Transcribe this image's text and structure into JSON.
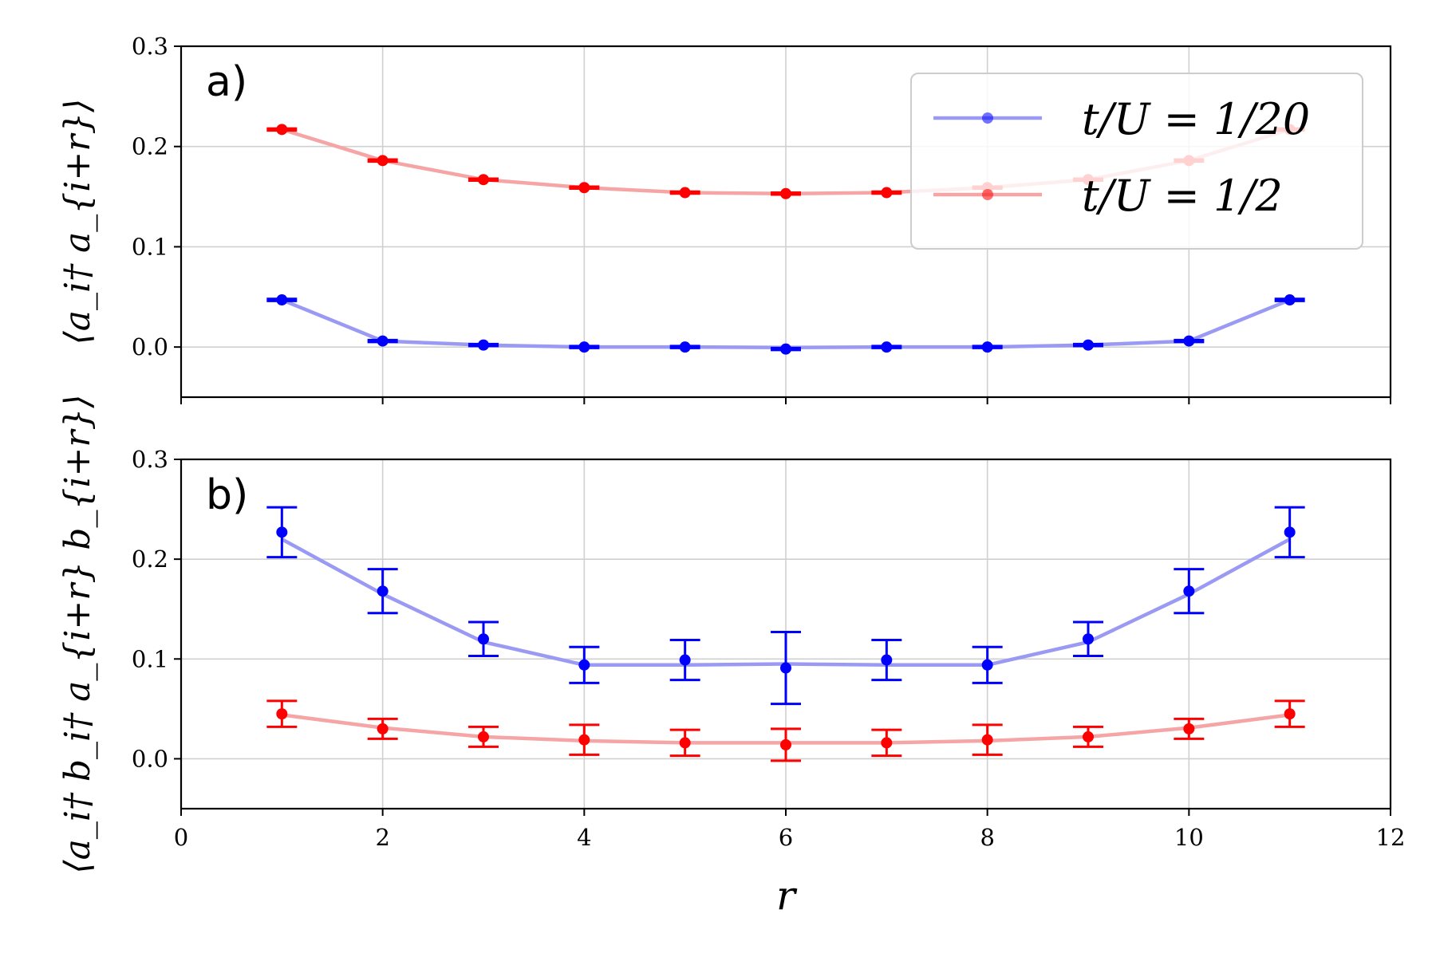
{
  "chart_data": [
    {
      "type": "line",
      "panel_label": "a)",
      "ylabel": "⟨a_i† a_{i+r}⟩",
      "xlim": [
        0,
        12
      ],
      "ylim": [
        -0.05,
        0.3
      ],
      "yticks": [
        "0.0",
        "0.1",
        "0.2",
        "0.3"
      ],
      "grid": true,
      "legend": "top-right",
      "x": [
        1,
        2,
        3,
        4,
        5,
        6,
        7,
        8,
        9,
        10,
        11
      ],
      "series": [
        {
          "name": "t/U = 1/20",
          "color": "#0000ff",
          "line_color": "#9a9af5",
          "values": [
            0.047,
            0.006,
            0.002,
            0.0,
            0.0,
            -0.002,
            0.0,
            0.0,
            0.002,
            0.006,
            0.047
          ],
          "errors": [
            0.001,
            0.001,
            0.001,
            0.001,
            0.001,
            0.001,
            0.001,
            0.001,
            0.001,
            0.001,
            0.001
          ],
          "fit": [
            0.047,
            0.006,
            0.002,
            0.0,
            0.0,
            -0.0005,
            0.0,
            0.0,
            0.002,
            0.006,
            0.047
          ]
        },
        {
          "name": "t/U = 1/2",
          "color": "#ff0000",
          "line_color": "#f5a5a5",
          "values": [
            0.217,
            0.186,
            0.167,
            0.159,
            0.154,
            0.153,
            0.154,
            0.159,
            0.167,
            0.186,
            0.217
          ],
          "errors": [
            0.001,
            0.001,
            0.001,
            0.001,
            0.001,
            0.001,
            0.001,
            0.001,
            0.001,
            0.001,
            0.001
          ],
          "fit": [
            0.217,
            0.186,
            0.167,
            0.159,
            0.154,
            0.153,
            0.154,
            0.159,
            0.167,
            0.186,
            0.217
          ]
        }
      ]
    },
    {
      "type": "line",
      "panel_label": "b)",
      "ylabel": "⟨a_i† b_i† a_{i+r} b_{i+r}⟩",
      "xlabel": "r",
      "xlim": [
        0,
        12
      ],
      "ylim": [
        -0.05,
        0.3
      ],
      "xticks": [
        "0",
        "2",
        "4",
        "6",
        "8",
        "10",
        "12"
      ],
      "yticks": [
        "0.0",
        "0.1",
        "0.2",
        "0.3"
      ],
      "grid": true,
      "x": [
        1,
        2,
        3,
        4,
        5,
        6,
        7,
        8,
        9,
        10,
        11
      ],
      "series": [
        {
          "name": "t/U = 1/20",
          "color": "#0000ff",
          "line_color": "#9a9af5",
          "values": [
            0.227,
            0.168,
            0.12,
            0.094,
            0.099,
            0.091,
            0.099,
            0.094,
            0.12,
            0.168,
            0.227
          ],
          "errors": [
            0.025,
            0.022,
            0.017,
            0.018,
            0.02,
            0.036,
            0.02,
            0.018,
            0.017,
            0.022,
            0.025
          ],
          "fit": [
            0.22,
            0.165,
            0.117,
            0.094,
            0.094,
            0.095,
            0.094,
            0.094,
            0.117,
            0.165,
            0.22
          ]
        },
        {
          "name": "t/U = 1/2",
          "color": "#ff0000",
          "line_color": "#f5a5a5",
          "values": [
            0.045,
            0.03,
            0.022,
            0.019,
            0.016,
            0.014,
            0.016,
            0.019,
            0.022,
            0.03,
            0.045
          ],
          "errors": [
            0.013,
            0.01,
            0.01,
            0.015,
            0.013,
            0.016,
            0.013,
            0.015,
            0.01,
            0.01,
            0.013
          ],
          "fit": [
            0.044,
            0.031,
            0.022,
            0.018,
            0.016,
            0.016,
            0.016,
            0.018,
            0.022,
            0.031,
            0.044
          ]
        }
      ]
    }
  ],
  "legend": {
    "entries": [
      "t/U = 1/20",
      "t/U = 1/2"
    ]
  }
}
